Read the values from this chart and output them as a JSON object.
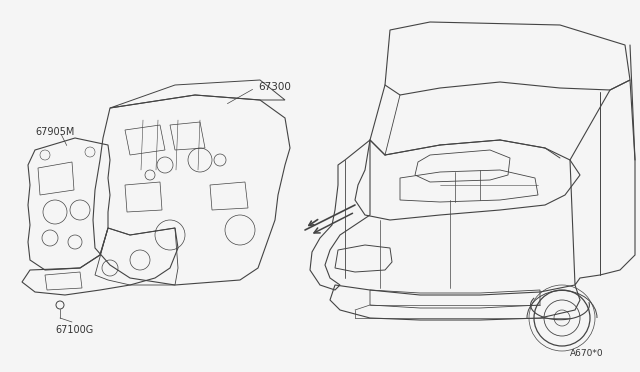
{
  "bg_color": "#f5f5f5",
  "line_color": "#444444",
  "thin_line": "#555555",
  "label_color": "#333333",
  "label_fontsize": 7.0,
  "figsize": [
    6.4,
    3.72
  ],
  "dpi": 100,
  "ref_code": "A670*0",
  "border_color": "#cccccc"
}
